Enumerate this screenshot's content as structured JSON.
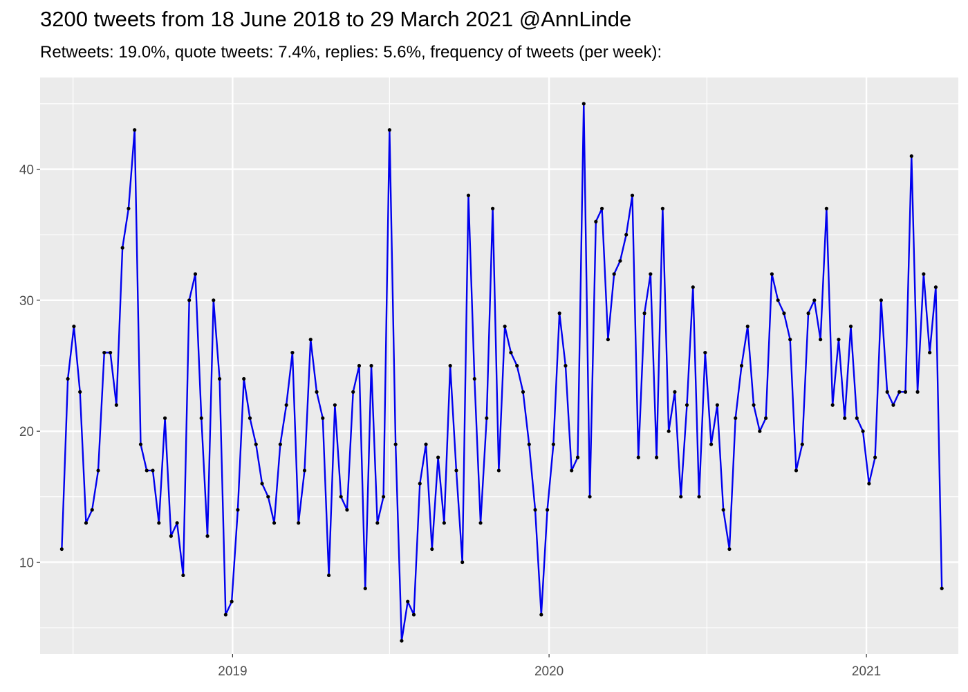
{
  "title": "3200 tweets from 18 June 2018 to 29 March 2021 @AnnLinde",
  "subtitle": "Retweets: 19.0%, quote tweets: 7.4%, replies: 5.6%, frequency of tweets (per week):",
  "colors": {
    "panel": "#ebebeb",
    "grid": "#ffffff",
    "line": "#0000ee",
    "point": "#000000"
  },
  "chart_data": {
    "type": "line",
    "title": "3200 tweets from 18 June 2018 to 29 March 2021 @AnnLinde",
    "subtitle": "Retweets: 19.0%, quote tweets: 7.4%, replies: 5.6%, frequency of tweets (per week):",
    "xlabel": "",
    "ylabel": "",
    "x_ticks": [
      "2019",
      "2020",
      "2021"
    ],
    "y_ticks": [
      10,
      20,
      30,
      40
    ],
    "ylim": [
      3,
      47
    ],
    "xlim": [
      "2018-05-24",
      "2021-04-17"
    ],
    "grid": true,
    "legend": "none",
    "x": [
      "2018-06-18",
      "2018-06-25",
      "2018-07-02",
      "2018-07-09",
      "2018-07-16",
      "2018-07-23",
      "2018-07-30",
      "2018-08-06",
      "2018-08-13",
      "2018-08-20",
      "2018-08-27",
      "2018-09-03",
      "2018-09-10",
      "2018-09-17",
      "2018-09-24",
      "2018-10-01",
      "2018-10-08",
      "2018-10-15",
      "2018-10-22",
      "2018-10-29",
      "2018-11-05",
      "2018-11-12",
      "2018-11-19",
      "2018-11-26",
      "2018-12-03",
      "2018-12-10",
      "2018-12-17",
      "2018-12-24",
      "2018-12-31",
      "2019-01-07",
      "2019-01-14",
      "2019-01-21",
      "2019-01-28",
      "2019-02-04",
      "2019-02-11",
      "2019-02-18",
      "2019-02-25",
      "2019-03-04",
      "2019-03-11",
      "2019-03-18",
      "2019-03-25",
      "2019-04-01",
      "2019-04-08",
      "2019-04-15",
      "2019-04-22",
      "2019-04-29",
      "2019-05-06",
      "2019-05-13",
      "2019-05-20",
      "2019-05-27",
      "2019-06-03",
      "2019-06-10",
      "2019-06-17",
      "2019-06-24",
      "2019-07-01",
      "2019-07-08",
      "2019-07-15",
      "2019-07-22",
      "2019-07-29",
      "2019-08-05",
      "2019-08-12",
      "2019-08-19",
      "2019-08-26",
      "2019-09-02",
      "2019-09-09",
      "2019-09-16",
      "2019-09-23",
      "2019-09-30",
      "2019-10-07",
      "2019-10-14",
      "2019-10-21",
      "2019-10-28",
      "2019-11-04",
      "2019-11-11",
      "2019-11-18",
      "2019-11-25",
      "2019-12-02",
      "2019-12-09",
      "2019-12-16",
      "2019-12-23",
      "2019-12-30",
      "2020-01-06",
      "2020-01-13",
      "2020-01-20",
      "2020-01-27",
      "2020-02-03",
      "2020-02-10",
      "2020-02-17",
      "2020-02-24",
      "2020-03-02",
      "2020-03-09",
      "2020-03-16",
      "2020-03-23",
      "2020-03-30",
      "2020-04-06",
      "2020-04-13",
      "2020-04-20",
      "2020-04-27",
      "2020-05-04",
      "2020-05-11",
      "2020-05-18",
      "2020-05-25",
      "2020-06-01",
      "2020-06-08",
      "2020-06-15",
      "2020-06-22",
      "2020-06-29",
      "2020-07-06",
      "2020-07-13",
      "2020-07-20",
      "2020-07-27",
      "2020-08-03",
      "2020-08-10",
      "2020-08-17",
      "2020-08-24",
      "2020-08-31",
      "2020-09-07",
      "2020-09-14",
      "2020-09-21",
      "2020-09-28",
      "2020-10-05",
      "2020-10-12",
      "2020-10-19",
      "2020-10-26",
      "2020-11-02",
      "2020-11-09",
      "2020-11-16",
      "2020-11-23",
      "2020-11-30",
      "2020-12-07",
      "2020-12-14",
      "2020-12-21",
      "2020-12-28",
      "2021-01-04",
      "2021-01-11",
      "2021-01-18",
      "2021-01-25",
      "2021-02-01",
      "2021-02-08",
      "2021-02-15",
      "2021-02-22",
      "2021-03-01",
      "2021-03-08",
      "2021-03-15",
      "2021-03-22",
      "2021-03-29"
    ],
    "series": [
      {
        "values": [
          11,
          24,
          28,
          23,
          13,
          14,
          17,
          26,
          26,
          22,
          34,
          37,
          43,
          19,
          17,
          17,
          13,
          21,
          12,
          13,
          9,
          30,
          32,
          21,
          12,
          30,
          24,
          6,
          7,
          14,
          24,
          21,
          19,
          16,
          15,
          13,
          19,
          22,
          26,
          13,
          17,
          27,
          23,
          21,
          9,
          22,
          15,
          14,
          23,
          25,
          8,
          25,
          13,
          15,
          43,
          19,
          4,
          7,
          6,
          16,
          19,
          11,
          18,
          13,
          25,
          17,
          10,
          38,
          24,
          13,
          21,
          37,
          17,
          28,
          26,
          25,
          23,
          19,
          14,
          6,
          14,
          19,
          29,
          25,
          17,
          18,
          45,
          15,
          36,
          37,
          27,
          32,
          33,
          35,
          38,
          18,
          29,
          32,
          18,
          37,
          20,
          23,
          15,
          22,
          31,
          15,
          26,
          19,
          22,
          14,
          11,
          21,
          25,
          28,
          22,
          20,
          21,
          32,
          30,
          29,
          27,
          17,
          19,
          29,
          30,
          27,
          37,
          22,
          27,
          21,
          28,
          21,
          20,
          16,
          18,
          30,
          23,
          22,
          23,
          23,
          41,
          23,
          32,
          26,
          31,
          8
        ]
      }
    ]
  }
}
